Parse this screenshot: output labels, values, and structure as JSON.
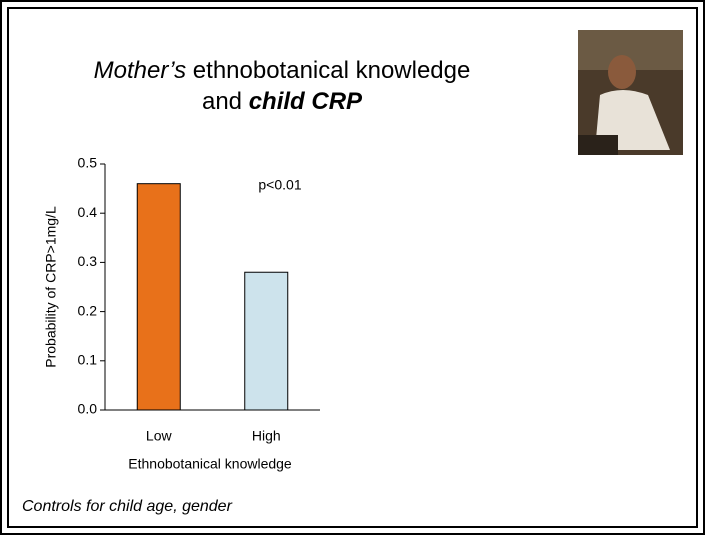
{
  "chart_data": {
    "type": "bar",
    "title": {
      "line1": [
        "Mother’s",
        "ethnobotanical knowledge"
      ],
      "line2": [
        "and",
        "child CRP"
      ]
    },
    "categories": [
      "Low",
      "High"
    ],
    "values": [
      0.46,
      0.28
    ],
    "colors": [
      "#e8711a",
      "#cde3ec"
    ],
    "ylim": [
      0,
      0.5
    ],
    "yticks": [
      {
        "value": 0,
        "label": "0.0"
      },
      0.1,
      0.2,
      0.3,
      0.4,
      0.5
    ],
    "y_label": "Probability of CRP>1mg/L",
    "x_label": "Ethnobotanical knowledge",
    "annotation": "p<0.01",
    "footnote": "Controls for child age, gender"
  }
}
